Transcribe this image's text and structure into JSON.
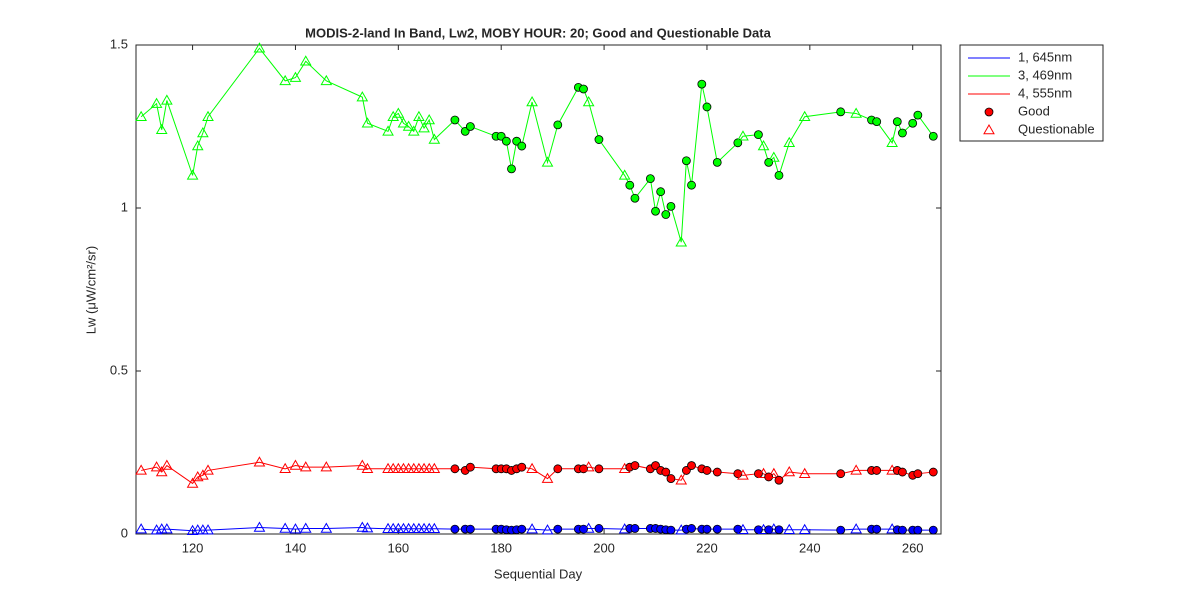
{
  "chart_data": {
    "type": "line",
    "title": "MODIS-2-land In Band,  Lw2, MOBY HOUR: 20;  Good and Questionable Data",
    "x_label": "Sequential Day",
    "y_label": "Lw (μW/cm²/sr)",
    "xlim": [
      109,
      265.5
    ],
    "xticks": [
      120,
      140,
      160,
      180,
      200,
      220,
      240,
      260
    ],
    "ylim": [
      0,
      1.5
    ],
    "yticks": [
      0,
      0.5,
      1,
      1.5
    ],
    "grid": false,
    "legend_position": "outside-right",
    "x": [
      110,
      113,
      114,
      115,
      120,
      121,
      122,
      123,
      133,
      138,
      140,
      142,
      146,
      153,
      154,
      158,
      159,
      160,
      161,
      162,
      163,
      164,
      165,
      166,
      167,
      171,
      173,
      174,
      179,
      180,
      181,
      182,
      183,
      184,
      186,
      189,
      191,
      195,
      196,
      197,
      199,
      204,
      205,
      206,
      209,
      210,
      211,
      212,
      213,
      215,
      216,
      217,
      219,
      220,
      222,
      226,
      227,
      230,
      231,
      232,
      233,
      234,
      236,
      239,
      246,
      249,
      252,
      253,
      256,
      257,
      258,
      260,
      261,
      264
    ],
    "good": [
      false,
      false,
      false,
      false,
      false,
      false,
      false,
      false,
      false,
      false,
      false,
      false,
      false,
      false,
      false,
      false,
      false,
      false,
      false,
      false,
      false,
      false,
      false,
      false,
      false,
      true,
      true,
      true,
      true,
      true,
      true,
      true,
      true,
      true,
      false,
      false,
      true,
      true,
      true,
      false,
      true,
      false,
      true,
      true,
      true,
      true,
      true,
      true,
      true,
      false,
      true,
      true,
      true,
      true,
      true,
      true,
      false,
      true,
      false,
      true,
      false,
      true,
      false,
      false,
      true,
      false,
      true,
      true,
      false,
      true,
      true,
      true,
      true,
      true
    ],
    "series": [
      {
        "name": "1, 645nm",
        "color": "#0000ff",
        "values": [
          0.015,
          0.012,
          0.015,
          0.015,
          0.01,
          0.012,
          0.012,
          0.012,
          0.02,
          0.017,
          0.015,
          0.017,
          0.017,
          0.02,
          0.018,
          0.016,
          0.016,
          0.016,
          0.016,
          0.016,
          0.016,
          0.016,
          0.016,
          0.016,
          0.016,
          0.015,
          0.015,
          0.015,
          0.015,
          0.015,
          0.013,
          0.012,
          0.013,
          0.015,
          0.015,
          0.012,
          0.015,
          0.015,
          0.015,
          0.017,
          0.017,
          0.015,
          0.017,
          0.017,
          0.017,
          0.017,
          0.015,
          0.013,
          0.012,
          0.012,
          0.015,
          0.017,
          0.015,
          0.015,
          0.015,
          0.015,
          0.013,
          0.013,
          0.013,
          0.013,
          0.015,
          0.013,
          0.013,
          0.013,
          0.012,
          0.015,
          0.015,
          0.015,
          0.015,
          0.013,
          0.012,
          0.012,
          0.012,
          0.012
        ]
      },
      {
        "name": "3, 469nm",
        "color": "#00ff00",
        "values": [
          1.28,
          1.32,
          1.24,
          1.33,
          1.1,
          1.19,
          1.23,
          1.28,
          1.49,
          1.39,
          1.4,
          1.45,
          1.39,
          1.34,
          1.26,
          1.235,
          1.28,
          1.29,
          1.26,
          1.25,
          1.235,
          1.28,
          1.245,
          1.27,
          1.21,
          1.27,
          1.235,
          1.25,
          1.22,
          1.22,
          1.205,
          1.12,
          1.205,
          1.19,
          1.325,
          1.14,
          1.255,
          1.37,
          1.365,
          1.325,
          1.21,
          1.1,
          1.07,
          1.03,
          1.09,
          0.99,
          1.05,
          0.98,
          1.005,
          0.895,
          1.145,
          1.07,
          1.38,
          1.31,
          1.14,
          1.2,
          1.22,
          1.225,
          1.19,
          1.14,
          1.155,
          1.1,
          1.2,
          1.28,
          1.295,
          1.29,
          1.27,
          1.265,
          1.2,
          1.265,
          1.23,
          1.26,
          1.285,
          1.22
        ]
      },
      {
        "name": "4, 555nm",
        "color": "#ff0000",
        "values": [
          0.195,
          0.205,
          0.19,
          0.21,
          0.155,
          0.175,
          0.18,
          0.195,
          0.22,
          0.2,
          0.21,
          0.205,
          0.205,
          0.21,
          0.2,
          0.2,
          0.2,
          0.2,
          0.2,
          0.2,
          0.2,
          0.2,
          0.2,
          0.2,
          0.2,
          0.2,
          0.195,
          0.205,
          0.2,
          0.2,
          0.2,
          0.195,
          0.2,
          0.205,
          0.2,
          0.17,
          0.2,
          0.2,
          0.2,
          0.205,
          0.2,
          0.2,
          0.205,
          0.21,
          0.2,
          0.21,
          0.195,
          0.19,
          0.17,
          0.165,
          0.195,
          0.21,
          0.2,
          0.195,
          0.19,
          0.185,
          0.18,
          0.185,
          0.185,
          0.175,
          0.185,
          0.165,
          0.19,
          0.185,
          0.185,
          0.195,
          0.195,
          0.195,
          0.195,
          0.195,
          0.19,
          0.18,
          0.185,
          0.19
        ]
      }
    ],
    "marker_legend": {
      "labels": [
        "Good",
        "Questionable"
      ],
      "color": "#ff0000"
    }
  }
}
